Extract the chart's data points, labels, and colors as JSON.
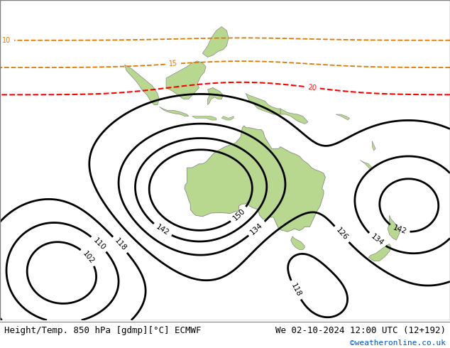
{
  "title_left": "Height/Temp. 850 hPa [gdmp][°C] ECMWF",
  "title_right": "We 02-10-2024 12:00 UTC (12+192)",
  "watermark": "©weatheronline.co.uk",
  "watermark_color": "#0055cc",
  "ocean_color": "#c8d8e8",
  "land_color": "#b8d890",
  "land_edge_color": "#888888",
  "fig_width": 6.34,
  "fig_height": 4.9,
  "dpi": 100,
  "bottom_bar_color": "#ffffff",
  "title_fontsize": 9,
  "watermark_fontsize": 8,
  "lon_min": 60,
  "lon_max": 190,
  "lat_min": -62,
  "lat_max": 22
}
